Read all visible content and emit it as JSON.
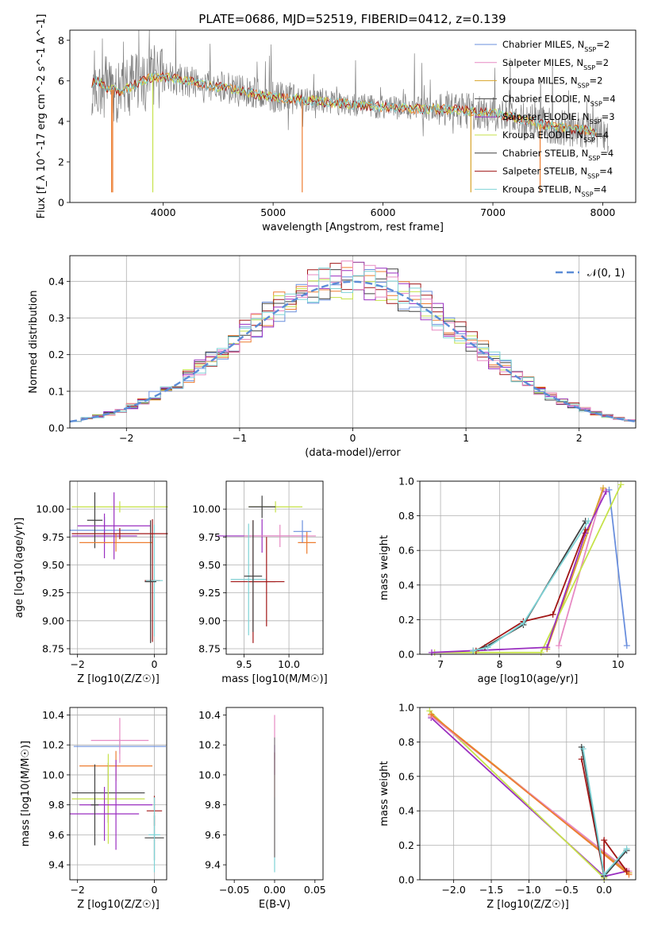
{
  "title": "PLATE=0686, MJD=52519, FIBERID=0412, z=0.139",
  "colors": {
    "gray": "#808080",
    "orange": "#ed7d31",
    "yellowgreen": "#c6e24a",
    "cyan": "#7ed3d6",
    "blue": "#6a8fdd",
    "pink": "#e78ac3",
    "gold": "#d8a42a",
    "purple": "#9a2fc0",
    "darkred": "#a11616",
    "darkgray": "#404040"
  },
  "chart_data": [
    {
      "id": "spectrum",
      "type": "line",
      "xlabel": "wavelength [Angstrom, rest frame]",
      "ylabel": "Flux [f_λ 10^-17 erg cm^-2 s^-1 A^-1]",
      "xlim": [
        3150,
        8300
      ],
      "ylim": [
        0,
        8.5
      ],
      "xticks": [
        4000,
        5000,
        6000,
        7000,
        8000
      ],
      "yticks": [
        0,
        2,
        4,
        6,
        8
      ],
      "legend_position": "upper right",
      "legend": [
        {
          "lib": "Chabrier MILES, N",
          "sub": "SSP",
          "n": "=2",
          "color": "#6a8fdd"
        },
        {
          "lib": "Salpeter MILES, N",
          "sub": "SSP",
          "n": "=2",
          "color": "#e78ac3"
        },
        {
          "lib": "Kroupa MILES, N",
          "sub": "SSP",
          "n": "=2",
          "color": "#d8a42a"
        },
        {
          "lib": "Chabrier ELODIE, N",
          "sub": "SSP",
          "n": "=4",
          "color": "#404040"
        },
        {
          "lib": "Salpeter ELODIE, N",
          "sub": "SSP",
          "n": "=3",
          "color": "#9a2fc0"
        },
        {
          "lib": "Kroupa ELODIE, N",
          "sub": "SSP",
          "n": "=4",
          "color": "#c6e24a"
        },
        {
          "lib": "Chabrier STELIB, N",
          "sub": "SSP",
          "n": "=4",
          "color": "#404040"
        },
        {
          "lib": "Salpeter STELIB, N",
          "sub": "SSP",
          "n": "=4",
          "color": "#a11616"
        },
        {
          "lib": "Kroupa STELIB, N",
          "sub": "SSP",
          "n": "=4",
          "color": "#7ed3d6"
        }
      ],
      "continuum": {
        "x": [
          3350,
          3400,
          3500,
          3600,
          3700,
          3800,
          3900,
          4000,
          4100,
          4200,
          4400,
          4600,
          4800,
          5000,
          5200,
          5400,
          5600,
          5800,
          6000,
          6200,
          6400,
          6600,
          6800,
          7000,
          7200,
          7400,
          7600,
          7800,
          8000,
          8050
        ],
        "y": [
          5.9,
          6.0,
          5.6,
          5.5,
          5.7,
          6.0,
          6.2,
          6.2,
          6.1,
          6.0,
          5.8,
          5.6,
          5.4,
          5.2,
          5.1,
          5.0,
          4.9,
          4.8,
          4.7,
          4.65,
          4.6,
          4.6,
          4.5,
          4.4,
          4.2,
          3.9,
          3.7,
          3.6,
          3.4,
          3.3
        ]
      }
    },
    {
      "id": "residuals",
      "type": "line",
      "xlabel": "(data-model)/error",
      "ylabel": "Normed distribution",
      "xlim": [
        -2.5,
        2.5
      ],
      "ylim": [
        0,
        0.47
      ],
      "xticks": [
        -2,
        -1,
        0,
        1,
        2
      ],
      "yticks": [
        0.0,
        0.1,
        0.2,
        0.3,
        0.4
      ],
      "legend": "𝒩(0, 1)",
      "legend_position": "upper right",
      "grid": true
    },
    {
      "id": "age-vs-Z",
      "type": "scatter",
      "xlabel": "Z [log10(Z/Z☉)]",
      "ylabel": "age [log10(age/yr)]",
      "xlim": [
        -2.2,
        0.32
      ],
      "ylim": [
        8.7,
        10.25
      ],
      "xticks": [
        -2,
        0
      ],
      "yticks": [
        8.75,
        9.0,
        9.25,
        9.5,
        9.75,
        10.0
      ],
      "grid": true
    },
    {
      "id": "age-vs-mass",
      "type": "scatter",
      "xlabel": "mass [log10(M/M☉)]",
      "xlim": [
        9.3,
        10.38
      ],
      "ylim": [
        8.7,
        10.25
      ],
      "xticks": [
        9.5,
        10.0
      ],
      "yticks": [
        8.75,
        9.0,
        9.25,
        9.5,
        9.75,
        10.0
      ],
      "grid": true
    },
    {
      "id": "mass-weight-vs-age",
      "type": "line",
      "xlabel": "age [log10(age/yr)]",
      "ylabel": "mass weight",
      "xlim": [
        6.65,
        10.3
      ],
      "ylim": [
        0,
        1.0
      ],
      "xticks": [
        7,
        8,
        9,
        10
      ],
      "yticks": [
        0.0,
        0.2,
        0.4,
        0.6,
        0.8,
        1.0
      ],
      "grid": true,
      "series": [
        {
          "color": "#6a8fdd",
          "x": [
            9.85,
            10.15
          ],
          "y": [
            0.95,
            0.05
          ]
        },
        {
          "color": "#e78ac3",
          "x": [
            9.0,
            9.75
          ],
          "y": [
            0.05,
            0.95
          ]
        },
        {
          "color": "#d8a42a",
          "x": [
            8.8,
            9.75
          ],
          "y": [
            0.03,
            0.96
          ]
        },
        {
          "color": "#c6e24a",
          "x": [
            6.9,
            8.7,
            10.05
          ],
          "y": [
            0.01,
            0.01,
            0.98
          ]
        },
        {
          "color": "#9a2fc0",
          "x": [
            6.85,
            8.8,
            9.45,
            9.8
          ],
          "y": [
            0.01,
            0.04,
            0.7,
            0.94
          ]
        },
        {
          "color": "#a11616",
          "x": [
            7.6,
            8.4,
            8.9,
            9.45
          ],
          "y": [
            0.02,
            0.19,
            0.23,
            0.72
          ]
        },
        {
          "color": "#404040",
          "x": [
            7.55,
            7.75,
            8.4,
            9.45
          ],
          "y": [
            0.02,
            0.04,
            0.17,
            0.77
          ]
        },
        {
          "color": "#7ed3d6",
          "x": [
            7.55,
            7.8,
            8.4,
            9.5
          ],
          "y": [
            0.02,
            0.04,
            0.18,
            0.77
          ]
        }
      ]
    },
    {
      "id": "mass-vs-Z",
      "type": "scatter",
      "xlabel": "Z [log10(Z/Z☉)]",
      "ylabel": "mass [log10(M/M☉)]",
      "xlim": [
        -2.2,
        0.32
      ],
      "ylim": [
        9.3,
        10.45
      ],
      "xticks": [
        -2,
        0
      ],
      "yticks": [
        9.4,
        9.6,
        9.8,
        10.0,
        10.2,
        10.4
      ],
      "grid": true
    },
    {
      "id": "mass-vs-ebv",
      "type": "scatter",
      "xlabel": "E(B-V)",
      "xlim": [
        -0.06,
        0.06
      ],
      "ylim": [
        9.3,
        10.45
      ],
      "xticks": [
        -0.05,
        0.0,
        0.05
      ],
      "yticks": [
        9.4,
        9.6,
        9.8,
        10.0,
        10.2,
        10.4
      ],
      "grid": false
    },
    {
      "id": "mass-weight-vs-Z",
      "type": "line",
      "xlabel": "Z [log10(Z/Z☉)]",
      "ylabel": "mass weight",
      "xlim": [
        -2.45,
        0.42
      ],
      "ylim": [
        0,
        1.0
      ],
      "xticks": [
        -2.0,
        -1.5,
        -1.0,
        -0.5,
        0.0
      ],
      "yticks": [
        0.0,
        0.2,
        0.4,
        0.6,
        0.8,
        1.0
      ],
      "grid": true,
      "series": [
        {
          "color": "#9a2fc0",
          "x": [
            -2.3,
            0.0,
            0.3
          ],
          "y": [
            0.94,
            0.02,
            0.05
          ]
        },
        {
          "color": "#c6e24a",
          "x": [
            -2.32,
            0.0
          ],
          "y": [
            0.98,
            0.01
          ]
        },
        {
          "color": "#d8a42a",
          "x": [
            -2.3,
            0.33
          ],
          "y": [
            0.96,
            0.04
          ]
        },
        {
          "color": "#e78ac3",
          "x": [
            -2.3,
            0.33
          ],
          "y": [
            0.95,
            0.05
          ]
        },
        {
          "color": "#ed7d31",
          "x": [
            -2.3,
            0.33
          ],
          "y": [
            0.96,
            0.03
          ]
        },
        {
          "color": "#a11616",
          "x": [
            -0.3,
            0.0,
            0.0,
            0.3
          ],
          "y": [
            0.7,
            0.02,
            0.23,
            0.05
          ]
        },
        {
          "color": "#404040",
          "x": [
            -0.3,
            0.0,
            0.3
          ],
          "y": [
            0.77,
            0.02,
            0.17
          ]
        },
        {
          "color": "#7ed3d6",
          "x": [
            -0.28,
            0.0,
            0.3
          ],
          "y": [
            0.76,
            0.03,
            0.18
          ]
        }
      ]
    }
  ]
}
